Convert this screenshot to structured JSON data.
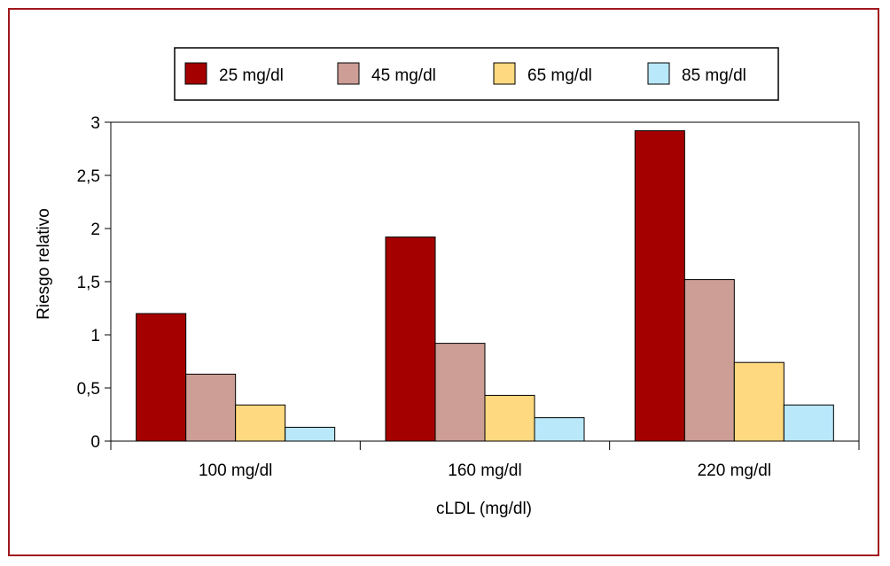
{
  "chart_data": {
    "type": "bar",
    "categories": [
      "100 mg/dl",
      "160 mg/dl",
      "220 mg/dl"
    ],
    "series": [
      {
        "name": "25 mg/dl",
        "color": "#a50000",
        "values": [
          1.2,
          1.92,
          2.92
        ]
      },
      {
        "name": "45 mg/dl",
        "color": "#cc9e96",
        "values": [
          0.63,
          0.92,
          1.52
        ]
      },
      {
        "name": "65 mg/dl",
        "color": "#ffd97f",
        "values": [
          0.34,
          0.43,
          0.74
        ]
      },
      {
        "name": "85 mg/dl",
        "color": "#b8e8fa",
        "values": [
          0.13,
          0.22,
          0.34
        ]
      }
    ],
    "title": "",
    "xlabel": "cLDL (mg/dl)",
    "ylabel": "Riesgo relativo",
    "ylim": [
      0,
      3
    ],
    "yticks": [
      0,
      0.5,
      1,
      1.5,
      2,
      2.5,
      3
    ],
    "ytick_labels": [
      "0",
      "0,5",
      "1",
      "1,5",
      "2",
      "2,5",
      "3"
    ],
    "legend_position": "top",
    "grid": false,
    "frame_color": "#a0181e"
  }
}
